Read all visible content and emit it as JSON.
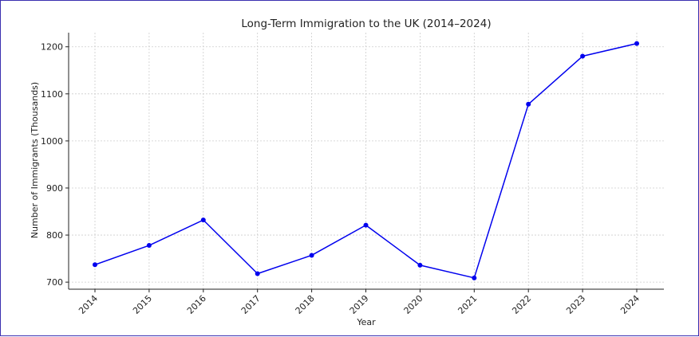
{
  "chart_data": {
    "type": "line",
    "title": "Long-Term Immigration to the UK (2014–2024)",
    "xlabel": "Year",
    "ylabel": "Number of Immigrants (Thousands)",
    "x": [
      "2014",
      "2015",
      "2016",
      "2017",
      "2018",
      "2019",
      "2020",
      "2021",
      "2022",
      "2023",
      "2024"
    ],
    "series": [
      {
        "values": [
          737,
          778,
          832,
          718,
          757,
          821,
          736,
          709,
          1078,
          1180,
          1207
        ]
      }
    ],
    "yticks": [
      700,
      800,
      900,
      1000,
      1100,
      1200
    ],
    "ylim": [
      685,
      1230
    ],
    "grid": true,
    "line_color": "#0000ee",
    "marker_color": "#0000ee",
    "axis_color": "#222222",
    "grid_color": "#cccccc"
  }
}
